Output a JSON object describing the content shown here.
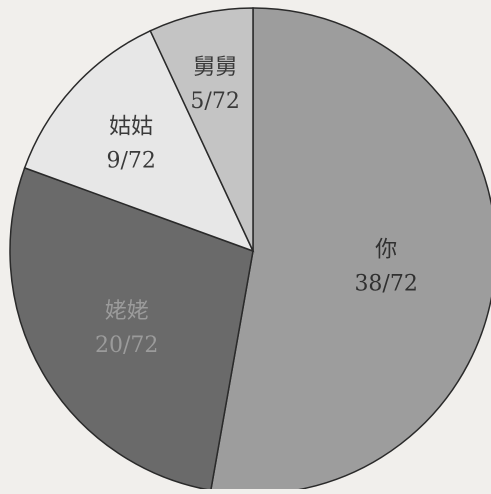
{
  "chart_data": {
    "type": "pie",
    "title": "",
    "slices": [
      {
        "label": "你",
        "value_label": "38/72",
        "value": 38,
        "color": "#9d9d9d",
        "text_color": "#303030"
      },
      {
        "label": "姥姥",
        "value_label": "20/72",
        "value": 20,
        "color": "#6a6a6a",
        "text_color": "#9b9b9b"
      },
      {
        "label": "姑姑",
        "value_label": "9/72",
        "value": 9,
        "color": "#e7e7e7",
        "text_color": "#3a3a3a"
      },
      {
        "label": "舅舅",
        "value_label": "5/72",
        "value": 5,
        "color": "#c4c4c4",
        "text_color": "#3a3a3a"
      }
    ],
    "total": 72,
    "start_angle_deg": 0,
    "direction": "clockwise"
  },
  "colors": {
    "background": "#f1efec",
    "outline": "#2a2a2a"
  }
}
